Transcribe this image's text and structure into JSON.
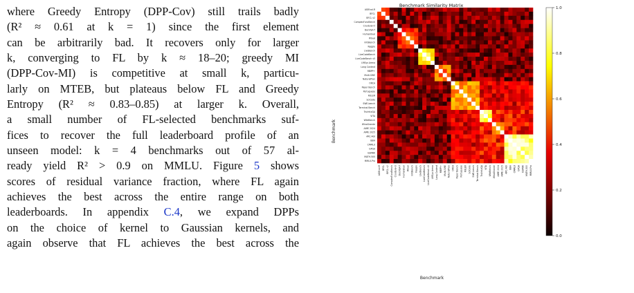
{
  "paragraph": {
    "lines": [
      "where Greedy Entropy (DPP-Cov) still trails badly",
      "(R² ≈ 0.61 at k = 1) since the first element",
      "can be arbitrarily bad. It recovers only for larger",
      "k, converging to FL by k ≈ 18–20; greedy MI",
      "(DPP-Cov-MI) is competitive at small k, particu-",
      "larly on MTEB, but plateaus below FL and Greedy",
      "Entropy (R² ≈ 0.83–0.85) at larger k. Overall,",
      "a small number of FL-selected benchmarks suf-",
      "fices to recover the full leaderboard profile of an",
      "unseen model: k = 4 benchmarks out of 57 al-",
      "ready yield R² > 0.9 on MMLU. Figure 5 shows",
      "scores of residual variance fraction, where FL again",
      "achieves the best across the entire range on both",
      "leaderboards. In appendix C.4, we expand DPPs",
      "on the choice of kernel to Gaussian kernels, and",
      "again observe that FL achieves the best across the"
    ],
    "refs": [
      "5",
      "C.4"
    ]
  },
  "chart_data": {
    "type": "heatmap",
    "title": "Benchmark Similarity Matrix",
    "xlabel": "Benchmark",
    "ylabel": "Benchmark",
    "n": 38,
    "colormap": "hot",
    "colorbar": {
      "ticks": [
        0.0,
        0.2,
        0.4,
        0.6,
        0.8,
        1.0
      ],
      "labels": [
        "0.0",
        "0.2",
        "0.4",
        "0.6",
        "0.8",
        "1.0"
      ]
    },
    "labels": [
      "AGIEval-R",
      "BFCL",
      "BFCL v2",
      "ComplexFuncBench",
      "CruxEval-O",
      "DocVQA-T",
      "HumanEval",
      "IFEval",
      "InfoBench",
      "Kaggle",
      "LiveBench",
      "LiveCodeBench",
      "LiveCodeBench v5",
      "LMSys Arena",
      "Long Context",
      "MBPP+",
      "Multi-SWE",
      "NaturalPlan",
      "ORCA",
      "Paper Bench",
      "Portuguese",
      "RULER",
      "SciCode",
      "SWE-bench",
      "Terminal Bench",
      "TruthfulQA",
      "VITA",
      "WildBench",
      "WinoGrande",
      "AIME 2024",
      "AIME 2025",
      "ARC-AGI",
      "BBH",
      "CMMLU",
      "GPQA",
      "GSM8K",
      "MATH-500",
      "MMLU-Pro"
    ],
    "groups": [
      {
        "start": 0,
        "end": 3,
        "level": 0.55
      },
      {
        "start": 3,
        "end": 5,
        "level": 0.3
      },
      {
        "start": 5,
        "end": 10,
        "level": 0.45
      },
      {
        "start": 10,
        "end": 14,
        "level": 0.78
      },
      {
        "start": 14,
        "end": 18,
        "level": 0.5
      },
      {
        "start": 18,
        "end": 25,
        "level": 0.6
      },
      {
        "start": 25,
        "end": 28,
        "level": 0.85
      },
      {
        "start": 28,
        "end": 31,
        "level": 0.62
      },
      {
        "start": 31,
        "end": 38,
        "level": 0.88
      }
    ],
    "value_range": [
      0.0,
      1.0
    ]
  }
}
